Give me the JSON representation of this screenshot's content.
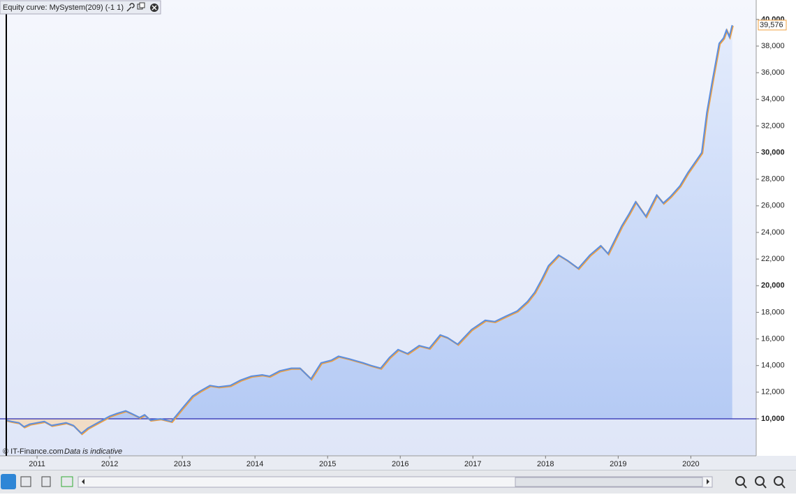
{
  "chart_data": {
    "type": "line",
    "title": "Equity curve: MySystem(209) (-1 1)",
    "credit": "© IT-Finance.com",
    "note": "Data is indicative",
    "last_label": "39,576",
    "baseline": 10000,
    "series": [
      {
        "name": "Equity",
        "color": "#5b8ee0",
        "x": [
          2010.57,
          2010.65,
          2010.75,
          2010.82,
          2010.9,
          2011.0,
          2011.1,
          2011.2,
          2011.3,
          2011.4,
          2011.5,
          2011.61,
          2011.7,
          2011.8,
          2011.9,
          2012.0,
          2012.1,
          2012.22,
          2012.3,
          2012.41,
          2012.48,
          2012.56,
          2012.7,
          2012.85,
          2013.0,
          2013.14,
          2013.25,
          2013.38,
          2013.5,
          2013.66,
          2013.8,
          2013.95,
          2014.1,
          2014.2,
          2014.34,
          2014.5,
          2014.62,
          2014.77,
          2014.91,
          2015.05,
          2015.15,
          2015.3,
          2015.49,
          2015.6,
          2015.73,
          2015.85,
          2015.97,
          2016.1,
          2016.26,
          2016.4,
          2016.55,
          2016.65,
          2016.79,
          2016.98,
          2017.17,
          2017.3,
          2017.45,
          2017.61,
          2017.75,
          2017.85,
          2017.95,
          2018.04,
          2018.18,
          2018.3,
          2018.45,
          2018.61,
          2018.76,
          2018.86,
          2019.05,
          2019.15,
          2019.24,
          2019.38,
          2019.53,
          2019.62,
          2019.72,
          2019.85,
          2019.96,
          2020.1,
          2020.15,
          2020.22,
          2020.3,
          2020.39,
          2020.45,
          2020.49,
          2020.53,
          2020.57
        ],
        "values": [
          9900,
          9800,
          9700,
          9400,
          9600,
          9700,
          9800,
          9500,
          9600,
          9700,
          9500,
          8900,
          9300,
          9600,
          9900,
          10200,
          10400,
          10600,
          10400,
          10100,
          10300,
          9900,
          10000,
          9800,
          10800,
          11700,
          12100,
          12500,
          12400,
          12500,
          12900,
          13200,
          13300,
          13200,
          13600,
          13800,
          13800,
          13000,
          14200,
          14400,
          14700,
          14500,
          14200,
          14000,
          13800,
          14600,
          15200,
          14900,
          15500,
          15300,
          16300,
          16100,
          15600,
          16700,
          17400,
          17300,
          17700,
          18100,
          18800,
          19500,
          20500,
          21500,
          22300,
          21900,
          21300,
          22300,
          23000,
          22400,
          24500,
          25400,
          26300,
          25200,
          26800,
          26200,
          26700,
          27500,
          28500,
          29600,
          30000,
          33000,
          35500,
          38200,
          38600,
          39200,
          38700,
          39576
        ]
      }
    ],
    "xlim": [
      2010.49,
      2020.9
    ],
    "xticks": [
      2011,
      2012,
      2013,
      2014,
      2015,
      2016,
      2017,
      2018,
      2019,
      2020
    ],
    "ylim": [
      7220,
      41460
    ],
    "yticks": [
      {
        "value": 10000,
        "label": "10,000"
      },
      {
        "value": 12000,
        "label": "12,000"
      },
      {
        "value": 14000,
        "label": "14,000"
      },
      {
        "value": 16000,
        "label": "16,000"
      },
      {
        "value": 18000,
        "label": "18,000"
      },
      {
        "value": 20000,
        "label": "20,000"
      },
      {
        "value": 22000,
        "label": "22,000"
      },
      {
        "value": 24000,
        "label": "24,000"
      },
      {
        "value": 26000,
        "label": "26,000"
      },
      {
        "value": 28000,
        "label": "28,000"
      },
      {
        "value": 30000,
        "label": "30,000"
      },
      {
        "value": 32000,
        "label": "32,000"
      },
      {
        "value": 34000,
        "label": "34,000"
      },
      {
        "value": 36000,
        "label": "36,000"
      },
      {
        "value": 38000,
        "label": "38,000"
      },
      {
        "value": 40000,
        "label": "40,000"
      }
    ]
  }
}
